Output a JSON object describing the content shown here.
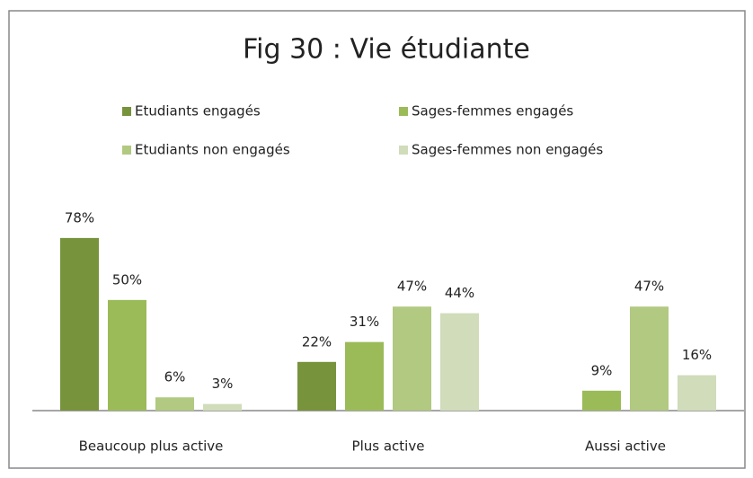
{
  "chart_data": {
    "type": "bar",
    "title": "Fig 30 : Vie étudiante",
    "categories": [
      "Beaucoup plus active",
      "Plus active",
      "Aussi active"
    ],
    "series": [
      {
        "name": "Etudiants engagés",
        "color": "#77933c",
        "values": [
          78,
          22,
          null
        ],
        "value_labels": [
          "78%",
          "22%",
          null
        ]
      },
      {
        "name": "Sages-femmes engagés",
        "color": "#9bbb59",
        "values": [
          50,
          31,
          9
        ],
        "value_labels": [
          "50%",
          "31%",
          "9%"
        ]
      },
      {
        "name": "Etudiants non engagés",
        "color": "#b1c980",
        "values": [
          6,
          47,
          47
        ],
        "value_labels": [
          "6%",
          "47%",
          "47%"
        ]
      },
      {
        "name": "Sages-femmes non engagés",
        "color": "#d0dcba",
        "values": [
          3,
          44,
          16
        ],
        "value_labels": [
          "3%",
          "44%",
          "16%"
        ]
      }
    ],
    "ylim": [
      0,
      95
    ],
    "grid": false,
    "legend": "top"
  }
}
